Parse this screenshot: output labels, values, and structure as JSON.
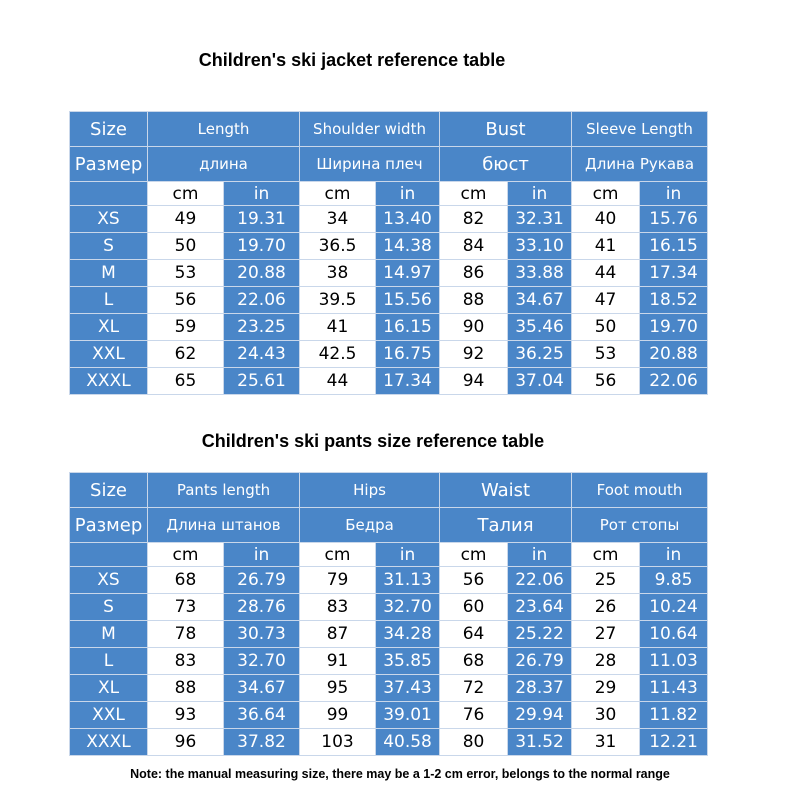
{
  "jacket": {
    "title": "Children's ski jacket reference table",
    "header_en": [
      "Size",
      "Length",
      "Shoulder width",
      "Bust",
      "Sleeve Length"
    ],
    "header_ru": [
      "Размер",
      "длина",
      "Ширина плеч",
      "бюст",
      "Длина Рукава"
    ],
    "units": [
      "cm",
      "in",
      "cm",
      "in",
      "cm",
      "in",
      "cm",
      "in"
    ],
    "rows": [
      [
        "XS",
        "49",
        "19.31",
        "34",
        "13.40",
        "82",
        "32.31",
        "40",
        "15.76"
      ],
      [
        "S",
        "50",
        "19.70",
        "36.5",
        "14.38",
        "84",
        "33.10",
        "41",
        "16.15"
      ],
      [
        "M",
        "53",
        "20.88",
        "38",
        "14.97",
        "86",
        "33.88",
        "44",
        "17.34"
      ],
      [
        "L",
        "56",
        "22.06",
        "39.5",
        "15.56",
        "88",
        "34.67",
        "47",
        "18.52"
      ],
      [
        "XL",
        "59",
        "23.25",
        "41",
        "16.15",
        "90",
        "35.46",
        "50",
        "19.70"
      ],
      [
        "XXL",
        "62",
        "24.43",
        "42.5",
        "16.75",
        "92",
        "36.25",
        "53",
        "20.88"
      ],
      [
        "XXXL",
        "65",
        "25.61",
        "44",
        "17.34",
        "94",
        "37.04",
        "56",
        "22.06"
      ]
    ]
  },
  "pants": {
    "title": "Children's ski pants size reference table",
    "header_en": [
      "Size",
      "Pants length",
      "Hips",
      "Waist",
      "Foot mouth"
    ],
    "header_ru": [
      "Размер",
      "Длина штанов",
      "Бедра",
      "Талия",
      "Рот стопы"
    ],
    "units": [
      "cm",
      "in",
      "cm",
      "in",
      "cm",
      "in",
      "cm",
      "in"
    ],
    "rows": [
      [
        "XS",
        "68",
        "26.79",
        "79",
        "31.13",
        "56",
        "22.06",
        "25",
        "9.85"
      ],
      [
        "S",
        "73",
        "28.76",
        "83",
        "32.70",
        "60",
        "23.64",
        "26",
        "10.24"
      ],
      [
        "M",
        "78",
        "30.73",
        "87",
        "34.28",
        "64",
        "25.22",
        "27",
        "10.64"
      ],
      [
        "L",
        "83",
        "32.70",
        "91",
        "35.85",
        "68",
        "26.79",
        "28",
        "11.03"
      ],
      [
        "XL",
        "88",
        "34.67",
        "95",
        "37.43",
        "72",
        "28.37",
        "29",
        "11.43"
      ],
      [
        "XXL",
        "93",
        "36.64",
        "99",
        "39.01",
        "76",
        "29.94",
        "30",
        "11.82"
      ],
      [
        "XXXL",
        "96",
        "37.82",
        "103",
        "40.58",
        "80",
        "31.52",
        "31",
        "12.21"
      ]
    ]
  },
  "note": "Note: the manual measuring size, there may be a 1-2 cm error, belongs to the normal range",
  "colors": {
    "header_blue": "#4a86c8",
    "grid": "#c9d7ea",
    "text_white": "#ffffff"
  }
}
